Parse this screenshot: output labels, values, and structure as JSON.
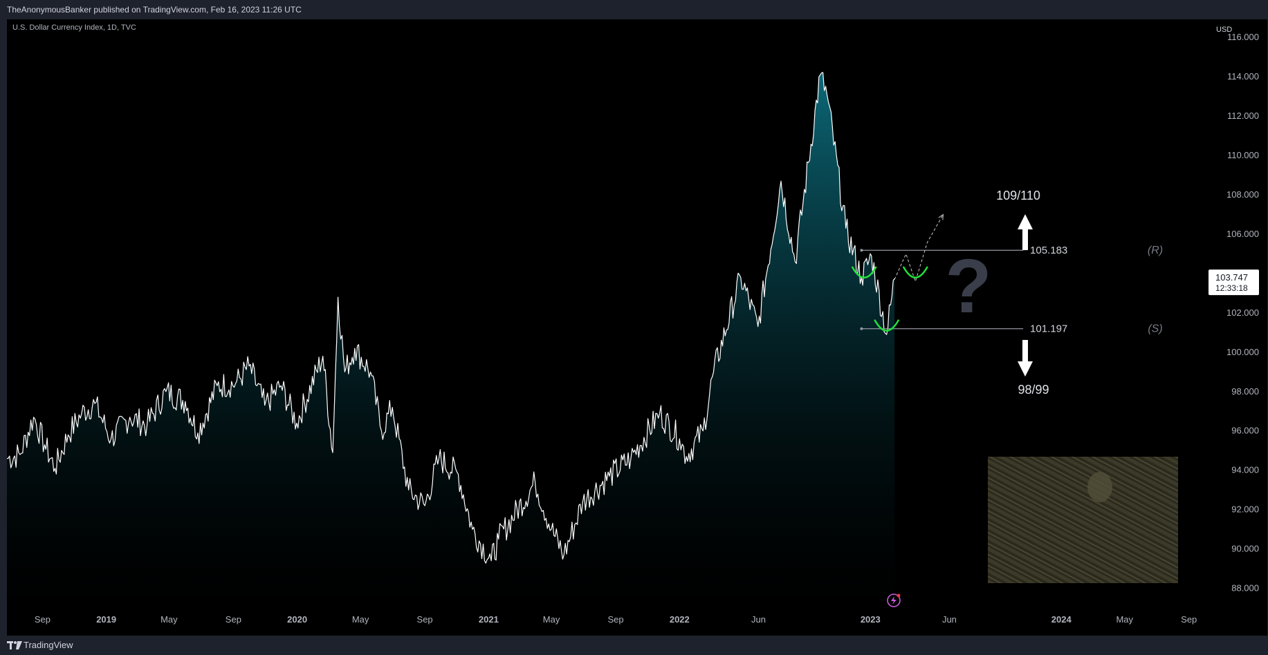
{
  "header": {
    "published_by": "TheAnonymousBanker published on TradingView.com, Feb 16, 2023 11:26 UTC"
  },
  "symbol": {
    "title": "U.S. Dollar Currency Index, 1D, TVC"
  },
  "footer": {
    "brand": "TradingView"
  },
  "price_badge": {
    "price": "103.747",
    "countdown": "12:33:18"
  },
  "colors": {
    "background": "#000000",
    "line": "#ffffff",
    "area_top": "#0e7a8c",
    "area_bottom": "#000000",
    "level_line": "#9598a1",
    "marker": "#22e23a",
    "arrow": "#ffffff"
  },
  "annotations": {
    "target_up": "109/110",
    "target_down": "98/99",
    "resistance_value": "105.183",
    "support_value": "101.197",
    "resistance_tag": "(R)",
    "support_tag": "(S)",
    "question": "?"
  },
  "chart_data": {
    "type": "area",
    "currency": "USD",
    "y_unit_label": "USD",
    "ylim": [
      87,
      116.5
    ],
    "yticks": [
      88.0,
      90.0,
      92.0,
      94.0,
      96.0,
      98.0,
      100.0,
      102.0,
      104.0,
      106.0,
      108.0,
      110.0,
      112.0,
      114.0,
      116.0
    ],
    "ytick_labels": [
      "88.000",
      "90.000",
      "92.000",
      "94.000",
      "96.000",
      "98.000",
      "100.000",
      "102.000",
      "104.000",
      "106.000",
      "108.000",
      "110.000",
      "112.000",
      "114.000",
      "116.000"
    ],
    "xlim": [
      "2018-06-25",
      "2024-10-15"
    ],
    "xticks": [
      {
        "label": "Sep",
        "date": "2018-09-01"
      },
      {
        "label": "2019",
        "date": "2019-01-01"
      },
      {
        "label": "May",
        "date": "2019-05-01"
      },
      {
        "label": "Sep",
        "date": "2019-09-01"
      },
      {
        "label": "2020",
        "date": "2020-01-01"
      },
      {
        "label": "May",
        "date": "2020-05-01"
      },
      {
        "label": "Sep",
        "date": "2020-09-01"
      },
      {
        "label": "2021",
        "date": "2021-01-01"
      },
      {
        "label": "May",
        "date": "2021-05-01"
      },
      {
        "label": "Sep",
        "date": "2021-09-01"
      },
      {
        "label": "2022",
        "date": "2022-01-01"
      },
      {
        "label": "Jun",
        "date": "2022-06-01"
      },
      {
        "label": "2023",
        "date": "2023-01-01"
      },
      {
        "label": "Jun",
        "date": "2023-06-01"
      },
      {
        "label": "2024",
        "date": "2024-01-01"
      },
      {
        "label": "May",
        "date": "2024-05-01"
      },
      {
        "label": "Sep",
        "date": "2024-09-01"
      }
    ],
    "series": [
      {
        "points": [
          [
            "2018-06-25",
            94.6
          ],
          [
            "2018-07-20",
            94.8
          ],
          [
            "2018-08-15",
            96.7
          ],
          [
            "2018-09-05",
            95.3
          ],
          [
            "2018-09-25",
            94.1
          ],
          [
            "2018-10-20",
            95.8
          ],
          [
            "2018-11-15",
            96.9
          ],
          [
            "2018-12-10",
            97.4
          ],
          [
            "2019-01-10",
            95.6
          ],
          [
            "2019-02-15",
            96.7
          ],
          [
            "2019-03-20",
            96.3
          ],
          [
            "2019-04-25",
            98.0
          ],
          [
            "2019-06-01",
            97.5
          ],
          [
            "2019-06-25",
            95.9
          ],
          [
            "2019-08-01",
            98.3
          ],
          [
            "2019-09-05",
            98.4
          ],
          [
            "2019-10-01",
            99.3
          ],
          [
            "2019-10-31",
            97.3
          ],
          [
            "2019-12-01",
            98.3
          ],
          [
            "2019-12-31",
            96.4
          ],
          [
            "2020-02-19",
            99.8
          ],
          [
            "2020-03-09",
            94.9
          ],
          [
            "2020-03-19",
            102.8
          ],
          [
            "2020-04-01",
            99.0
          ],
          [
            "2020-04-20",
            100.2
          ],
          [
            "2020-05-20",
            99.0
          ],
          [
            "2020-06-10",
            96.0
          ],
          [
            "2020-07-01",
            97.2
          ],
          [
            "2020-08-01",
            93.0
          ],
          [
            "2020-09-01",
            92.2
          ],
          [
            "2020-09-28",
            94.6
          ],
          [
            "2020-11-04",
            93.8
          ],
          [
            "2020-12-01",
            91.0
          ],
          [
            "2021-01-06",
            89.4
          ],
          [
            "2021-01-20",
            90.5
          ],
          [
            "2021-03-31",
            93.4
          ],
          [
            "2021-05-01",
            91.0
          ],
          [
            "2021-05-25",
            89.7
          ],
          [
            "2021-06-30",
            92.4
          ],
          [
            "2021-08-20",
            93.7
          ],
          [
            "2021-09-30",
            94.6
          ],
          [
            "2021-11-24",
            96.9
          ],
          [
            "2022-01-01",
            95.6
          ],
          [
            "2022-01-14",
            94.7
          ],
          [
            "2022-02-15",
            96.0
          ],
          [
            "2022-03-07",
            99.0
          ],
          [
            "2022-04-28",
            103.8
          ],
          [
            "2022-05-31",
            101.3
          ],
          [
            "2022-07-14",
            108.7
          ],
          [
            "2022-08-10",
            104.6
          ],
          [
            "2022-09-27",
            114.1
          ],
          [
            "2022-10-10",
            113.1
          ],
          [
            "2022-11-15",
            106.3
          ],
          [
            "2022-12-15",
            103.8
          ],
          [
            "2023-01-03",
            104.9
          ],
          [
            "2023-02-01",
            100.9
          ],
          [
            "2023-02-16",
            103.747
          ]
        ]
      }
    ],
    "levels": [
      {
        "label": "(R)",
        "value": 105.183,
        "start": "2022-12-15",
        "end": "2023-10-20"
      },
      {
        "label": "(S)",
        "value": 101.197,
        "start": "2022-12-15",
        "end": "2023-10-20"
      }
    ],
    "projection": [
      [
        "2023-02-16",
        103.7
      ],
      [
        "2023-03-10",
        105.0
      ],
      [
        "2023-03-28",
        103.6
      ],
      [
        "2023-04-20",
        105.6
      ],
      [
        "2023-05-20",
        107.0
      ]
    ],
    "markers": [
      {
        "date": "2022-12-20",
        "value": 103.9
      },
      {
        "date": "2023-02-01",
        "value": 101.2
      },
      {
        "date": "2023-03-28",
        "value": 103.9
      }
    ]
  }
}
